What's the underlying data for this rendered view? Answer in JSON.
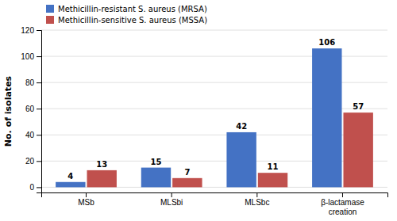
{
  "chart_data": {
    "type": "bar",
    "categories": [
      "MSb",
      "MLSbi",
      "MLSbc",
      "β-lactamase\ncreation"
    ],
    "series": [
      {
        "name": "Methicillin-resistant S. aureus (MRSA)",
        "color": "#4472C4",
        "values": [
          4,
          15,
          42,
          106
        ]
      },
      {
        "name": "Methicillin-sensitive S. aureus (MSSA)",
        "color": "#C0504D",
        "values": [
          13,
          7,
          11,
          57
        ]
      }
    ],
    "ylabel": "No. of isolates",
    "ylim": [
      -4,
      120
    ],
    "yticks": [
      0,
      20,
      40,
      60,
      80,
      100,
      120
    ],
    "grid": true,
    "legend": "upper left",
    "data_labels": true
  }
}
